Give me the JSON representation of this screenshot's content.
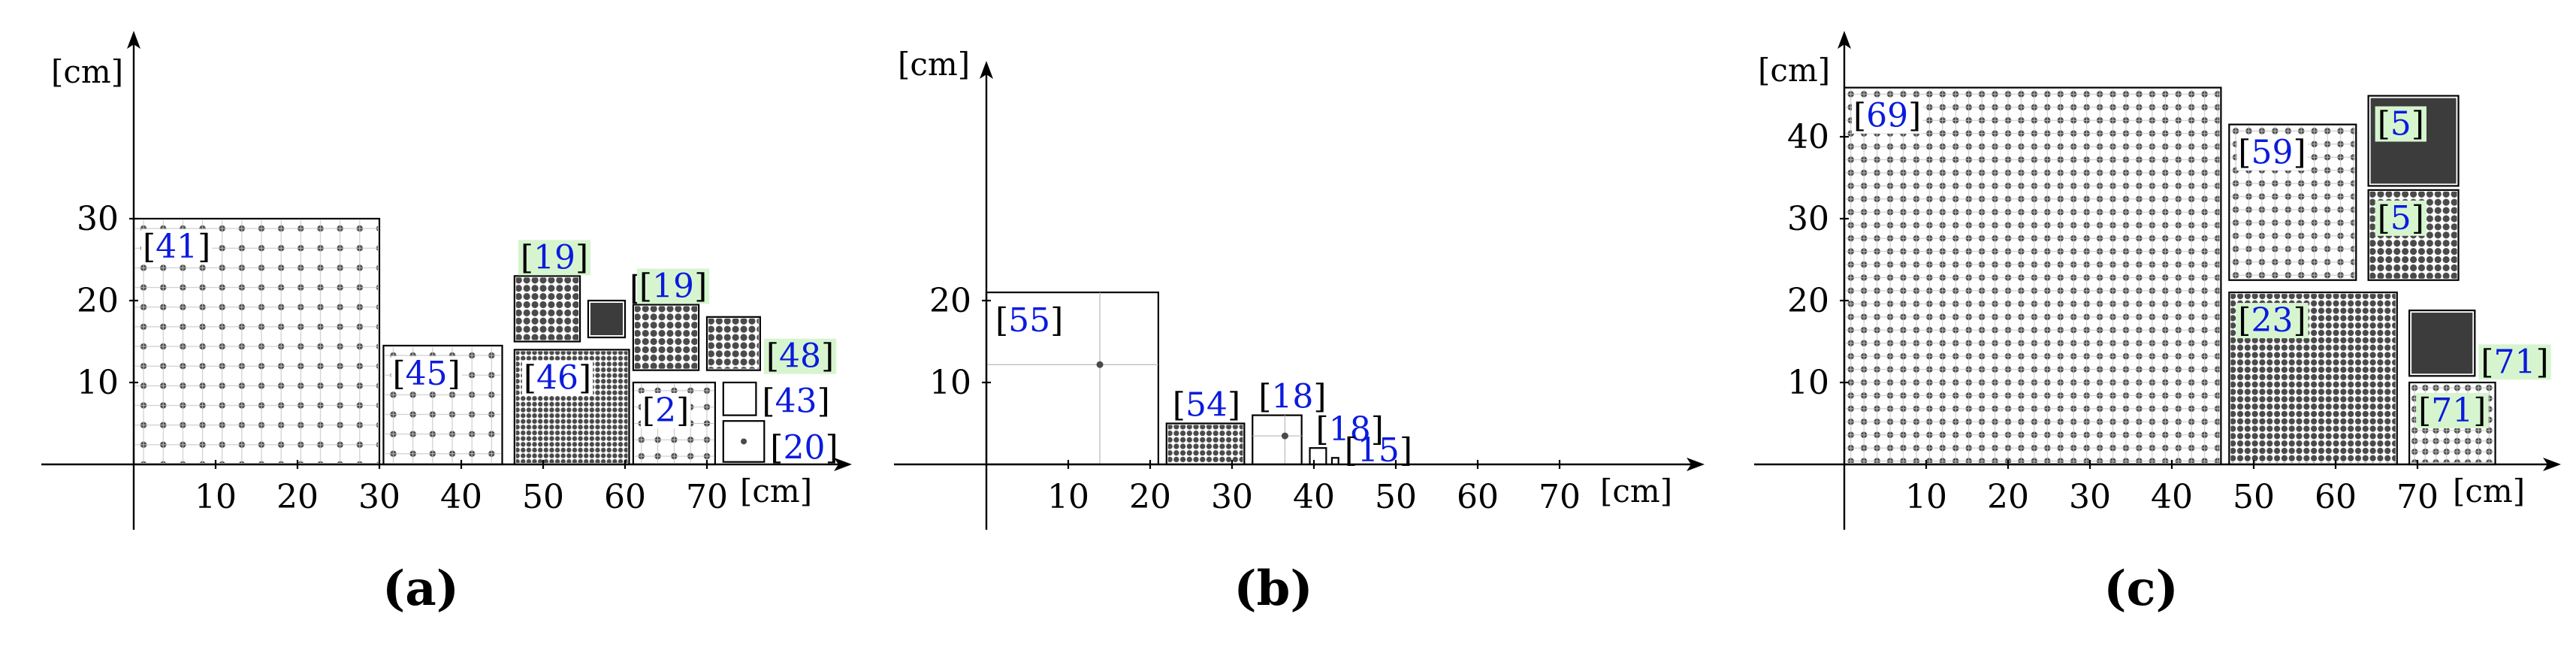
{
  "figure": {
    "panels": [
      {
        "id": "a",
        "label": "(a)",
        "y_unit": "[cm]",
        "x_unit": "[cm]",
        "x_ticks": [
          10,
          20,
          30,
          40,
          50,
          60,
          70
        ],
        "y_ticks": [
          10,
          20,
          30
        ],
        "items": [
          {
            "tag": "41",
            "x": 0,
            "y": 0,
            "w": 30,
            "h": 30,
            "fill": "dots",
            "pitch": 2.4,
            "highlight": false
          },
          {
            "tag": "45",
            "x": 30.5,
            "y": 0,
            "w": 14.5,
            "h": 14.5,
            "fill": "dots",
            "pitch": 2.4,
            "highlight": false
          },
          {
            "tag": "46",
            "x": 46.5,
            "y": 0,
            "w": 14,
            "h": 14,
            "fill": "dense",
            "pitch": 0.7,
            "highlight": false
          },
          {
            "tag": "19",
            "x": 46.5,
            "y": 15,
            "w": 8,
            "h": 8,
            "fill": "dense",
            "pitch": 1.0,
            "highlight": true
          },
          {
            "tag": "46",
            "x": 55.5,
            "y": 15.5,
            "w": 4.5,
            "h": 4.5,
            "fill": "solid",
            "pitch": 0,
            "highlight": false
          },
          {
            "tag": "19",
            "x": 61,
            "y": 11.5,
            "w": 8,
            "h": 8,
            "fill": "dense",
            "pitch": 1.0,
            "highlight": true
          },
          {
            "tag": "48",
            "x": 70,
            "y": 11.5,
            "w": 6.5,
            "h": 6.5,
            "fill": "dense",
            "pitch": 1.0,
            "highlight": true
          },
          {
            "tag": "2",
            "x": 61,
            "y": 0,
            "w": 10,
            "h": 10,
            "fill": "dots",
            "pitch": 2.0,
            "highlight": false
          },
          {
            "tag": "43",
            "x": 72,
            "y": 6,
            "w": 4,
            "h": 4,
            "fill": "none",
            "pitch": 0,
            "highlight": false
          },
          {
            "tag": "20",
            "x": 72,
            "y": 0.3,
            "w": 5,
            "h": 5,
            "fill": "single",
            "pitch": 0,
            "highlight": false
          }
        ]
      },
      {
        "id": "b",
        "label": "(b)",
        "y_unit": "[cm]",
        "x_unit": "[cm]",
        "x_ticks": [
          10,
          20,
          30,
          40,
          50,
          60,
          70
        ],
        "y_ticks": [
          10,
          20
        ],
        "items": [
          {
            "tag": "55",
            "x": 0,
            "y": 0,
            "w": 21,
            "h": 21,
            "fill": "crosshair",
            "pitch": 0,
            "highlight": false
          },
          {
            "tag": "54",
            "x": 22,
            "y": 0,
            "w": 9.5,
            "h": 5,
            "fill": "dense",
            "pitch": 0.8,
            "highlight": false
          },
          {
            "tag": "18",
            "x": 32.5,
            "y": 0,
            "w": 6,
            "h": 6,
            "fill": "crosshair",
            "pitch": 0,
            "highlight": false
          },
          {
            "tag": "18",
            "x": 39.5,
            "y": 0,
            "w": 2,
            "h": 2,
            "fill": "none",
            "pitch": 0,
            "highlight": false
          },
          {
            "tag": "15",
            "x": 42.2,
            "y": 0,
            "w": 0.8,
            "h": 0.8,
            "fill": "none",
            "pitch": 0,
            "highlight": false
          }
        ]
      },
      {
        "id": "c",
        "label": "(c)",
        "y_unit": "[cm]",
        "x_unit": "[cm]",
        "x_ticks": [
          10,
          20,
          30,
          40,
          50,
          60,
          70
        ],
        "y_ticks": [
          10,
          20,
          30,
          40
        ],
        "items": [
          {
            "tag": "69",
            "x": 0,
            "y": 0,
            "w": 46,
            "h": 46,
            "fill": "dots",
            "pitch": 1.6,
            "highlight": false
          },
          {
            "tag": "59",
            "x": 47,
            "y": 22.5,
            "w": 15.5,
            "h": 19,
            "fill": "dots",
            "pitch": 1.6,
            "highlight": false
          },
          {
            "tag": "23",
            "x": 47,
            "y": 0,
            "w": 20.5,
            "h": 21,
            "fill": "dense",
            "pitch": 0.9,
            "highlight": true
          },
          {
            "tag": "5",
            "x": 64,
            "y": 34,
            "w": 11,
            "h": 11,
            "fill": "solid",
            "pitch": 0,
            "highlight": true
          },
          {
            "tag": "5",
            "x": 64,
            "y": 22.5,
            "w": 11,
            "h": 11,
            "fill": "dense",
            "pitch": 1.0,
            "highlight": true
          },
          {
            "tag": "71",
            "x": 69,
            "y": 10.8,
            "w": 8,
            "h": 8,
            "fill": "solid",
            "pitch": 0,
            "highlight": true
          },
          {
            "tag": "71",
            "x": 69,
            "y": 0,
            "w": 10.5,
            "h": 10,
            "fill": "dots",
            "pitch": 1.3,
            "highlight": true
          }
        ]
      }
    ]
  }
}
